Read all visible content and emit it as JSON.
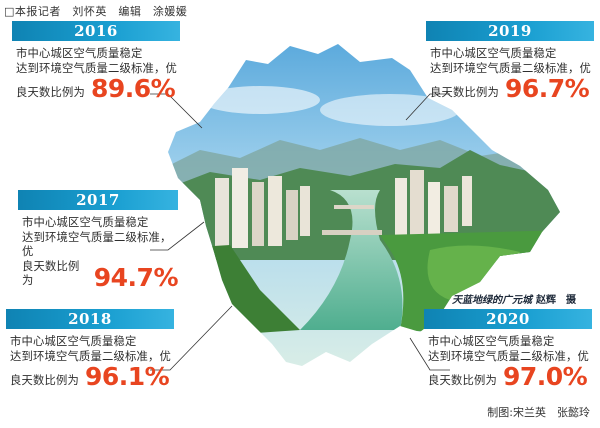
{
  "credits": {
    "reporters": "□本报记者　刘怀英　编辑　涂媛媛",
    "production": "制图:宋兰英　张懿玲"
  },
  "photo": {
    "caption": "天蓝地绿的广元城",
    "photographer": "赵辉　摄"
  },
  "cards": [
    {
      "year": "2016",
      "line1": "市中心城区空气质量稳定",
      "line2": "达到环境空气质量二级标准，优",
      "line3": "良天数比例为",
      "percent": "89.6%"
    },
    {
      "year": "2019",
      "line1": "市中心城区空气质量稳定",
      "line2": "达到环境空气质量二级标准，优",
      "line3": "良天数比例为",
      "percent": "96.7%"
    },
    {
      "year": "2017",
      "line1": "市中心城区空气质量稳定",
      "line2": "达到环境空气质量二级标准，优",
      "line3": "良天数比例为",
      "percent": "94.7%"
    },
    {
      "year": "2018",
      "line1": "市中心城区空气质量稳定",
      "line2": "达到环境空气质量二级标准，优",
      "line3": "良天数比例为",
      "percent": "96.1%"
    },
    {
      "year": "2020",
      "line1": "市中心城区空气质量稳定",
      "line2": "达到环境空气质量二级标准，优",
      "line3": "良天数比例为",
      "percent": "97.0%"
    }
  ],
  "colors": {
    "year_bar": "#1a9fd1",
    "percent": "#e84520",
    "sky": "#8ec9ea",
    "vegetation": "#3f8f3a",
    "river": "#7fc9b0"
  }
}
